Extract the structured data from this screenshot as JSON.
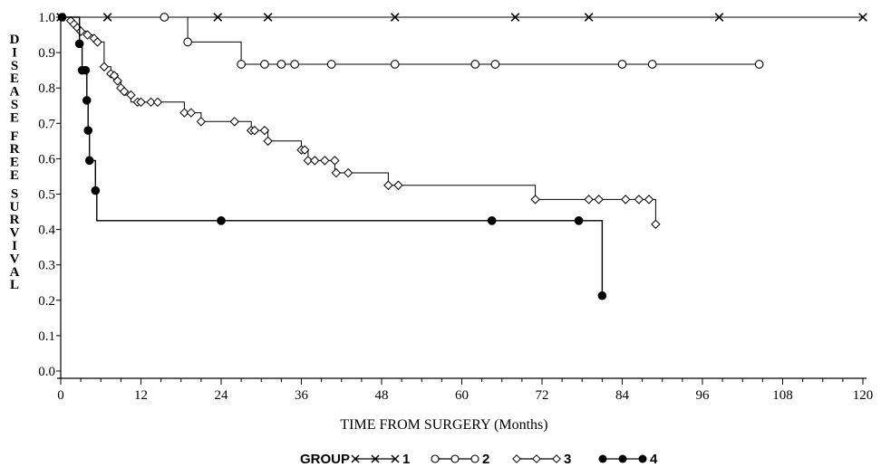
{
  "chart_data": {
    "type": "line",
    "step": true,
    "xlabel": "TIME FROM SURGERY (Months)",
    "ylabel": "DISEASE FREE SURVIVAL",
    "xlim": [
      0,
      120
    ],
    "ylim": [
      0,
      1
    ],
    "xticks": [
      0,
      12,
      24,
      36,
      48,
      60,
      72,
      84,
      96,
      108,
      120
    ],
    "yticks": [
      "0.0",
      "0.1",
      "0.2",
      "0.3",
      "0.4",
      "0.5",
      "0.6",
      "0.7",
      "0.8",
      "0.9",
      "1.0"
    ],
    "legend": {
      "title": "GROUP",
      "position": "bottom-center"
    },
    "series": [
      {
        "name": "1",
        "marker": "x",
        "step": [
          [
            0,
            1.0
          ],
          [
            120,
            1.0
          ]
        ],
        "markers": [
          [
            0,
            1.0
          ],
          [
            7,
            1.0
          ],
          [
            23.5,
            1.0
          ],
          [
            31,
            1.0
          ],
          [
            50,
            1.0
          ],
          [
            68,
            1.0
          ],
          [
            79,
            1.0
          ],
          [
            98.5,
            1.0
          ],
          [
            120,
            1.0
          ]
        ]
      },
      {
        "name": "2",
        "marker": "circle-open",
        "step": [
          [
            0,
            1.0
          ],
          [
            19,
            1.0
          ],
          [
            19,
            0.93
          ],
          [
            27,
            0.93
          ],
          [
            27,
            0.867
          ],
          [
            104.5,
            0.867
          ]
        ],
        "markers": [
          [
            15.5,
            1.0
          ],
          [
            19,
            0.93
          ],
          [
            27,
            0.867
          ],
          [
            30.5,
            0.867
          ],
          [
            33,
            0.867
          ],
          [
            35,
            0.867
          ],
          [
            40.5,
            0.867
          ],
          [
            50,
            0.867
          ],
          [
            62,
            0.867
          ],
          [
            65,
            0.867
          ],
          [
            84,
            0.867
          ],
          [
            88.5,
            0.867
          ],
          [
            104.5,
            0.867
          ]
        ]
      },
      {
        "name": "3",
        "marker": "diamond-open",
        "step": [
          [
            0,
            1.0
          ],
          [
            1.5,
            1.0
          ],
          [
            1.5,
            0.99
          ],
          [
            2,
            0.99
          ],
          [
            2,
            0.98
          ],
          [
            2.5,
            0.98
          ],
          [
            2.5,
            0.97
          ],
          [
            3,
            0.97
          ],
          [
            3,
            0.96
          ],
          [
            4,
            0.96
          ],
          [
            4,
            0.95
          ],
          [
            5,
            0.95
          ],
          [
            5,
            0.94
          ],
          [
            5.5,
            0.94
          ],
          [
            5.5,
            0.93
          ],
          [
            6.5,
            0.93
          ],
          [
            6.5,
            0.86
          ],
          [
            7.5,
            0.86
          ],
          [
            7.5,
            0.84
          ],
          [
            8.5,
            0.84
          ],
          [
            8.5,
            0.82
          ],
          [
            9,
            0.82
          ],
          [
            9,
            0.8
          ],
          [
            9.5,
            0.8
          ],
          [
            9.5,
            0.78
          ],
          [
            10.5,
            0.78
          ],
          [
            10.5,
            0.76
          ],
          [
            18.5,
            0.76
          ],
          [
            18.5,
            0.73
          ],
          [
            21,
            0.73
          ],
          [
            21,
            0.705
          ],
          [
            28.5,
            0.705
          ],
          [
            28.5,
            0.68
          ],
          [
            31,
            0.68
          ],
          [
            31,
            0.65
          ],
          [
            36,
            0.65
          ],
          [
            36,
            0.625
          ],
          [
            37,
            0.625
          ],
          [
            37,
            0.595
          ],
          [
            41,
            0.595
          ],
          [
            41,
            0.56
          ],
          [
            49,
            0.56
          ],
          [
            49,
            0.525
          ],
          [
            71,
            0.525
          ],
          [
            71,
            0.485
          ],
          [
            89,
            0.485
          ],
          [
            89,
            0.415
          ]
        ],
        "markers": [
          [
            1.5,
            0.99
          ],
          [
            2,
            0.98
          ],
          [
            2.5,
            0.97
          ],
          [
            3,
            0.96
          ],
          [
            4,
            0.95
          ],
          [
            5,
            0.94
          ],
          [
            5.5,
            0.93
          ],
          [
            6.5,
            0.86
          ],
          [
            7.5,
            0.84
          ],
          [
            8,
            0.835
          ],
          [
            8.5,
            0.82
          ],
          [
            9,
            0.8
          ],
          [
            9.5,
            0.79
          ],
          [
            10.5,
            0.78
          ],
          [
            11.5,
            0.76
          ],
          [
            12,
            0.76
          ],
          [
            13.5,
            0.76
          ],
          [
            14.5,
            0.76
          ],
          [
            18.5,
            0.73
          ],
          [
            19.5,
            0.73
          ],
          [
            21,
            0.705
          ],
          [
            26,
            0.705
          ],
          [
            28.5,
            0.68
          ],
          [
            29,
            0.68
          ],
          [
            30.5,
            0.68
          ],
          [
            31,
            0.65
          ],
          [
            36,
            0.625
          ],
          [
            36.5,
            0.625
          ],
          [
            37,
            0.595
          ],
          [
            38,
            0.595
          ],
          [
            39.5,
            0.595
          ],
          [
            41,
            0.595
          ],
          [
            41.2,
            0.56
          ],
          [
            43,
            0.56
          ],
          [
            49,
            0.525
          ],
          [
            50.5,
            0.525
          ],
          [
            71,
            0.485
          ],
          [
            79,
            0.485
          ],
          [
            80.5,
            0.485
          ],
          [
            84.5,
            0.485
          ],
          [
            86.5,
            0.485
          ],
          [
            88,
            0.485
          ],
          [
            89,
            0.415
          ]
        ]
      },
      {
        "name": "4",
        "marker": "circle-filled",
        "step": [
          [
            0,
            1.0
          ],
          [
            2.8,
            1.0
          ],
          [
            2.8,
            0.925
          ],
          [
            3.2,
            0.925
          ],
          [
            3.2,
            0.85
          ],
          [
            3.9,
            0.85
          ],
          [
            3.9,
            0.765
          ],
          [
            4.1,
            0.765
          ],
          [
            4.1,
            0.68
          ],
          [
            4.3,
            0.68
          ],
          [
            4.3,
            0.595
          ],
          [
            5.2,
            0.595
          ],
          [
            5.2,
            0.51
          ],
          [
            5.4,
            0.51
          ],
          [
            5.4,
            0.425
          ],
          [
            81,
            0.425
          ],
          [
            81,
            0.213
          ]
        ],
        "markers": [
          [
            0.2,
            1.0
          ],
          [
            2.8,
            0.925
          ],
          [
            3.2,
            0.85
          ],
          [
            3.7,
            0.85
          ],
          [
            3.9,
            0.765
          ],
          [
            4.1,
            0.68
          ],
          [
            4.3,
            0.595
          ],
          [
            5.2,
            0.51
          ],
          [
            24,
            0.425
          ],
          [
            64.5,
            0.425
          ],
          [
            77.5,
            0.425
          ],
          [
            81,
            0.213
          ]
        ]
      }
    ]
  }
}
